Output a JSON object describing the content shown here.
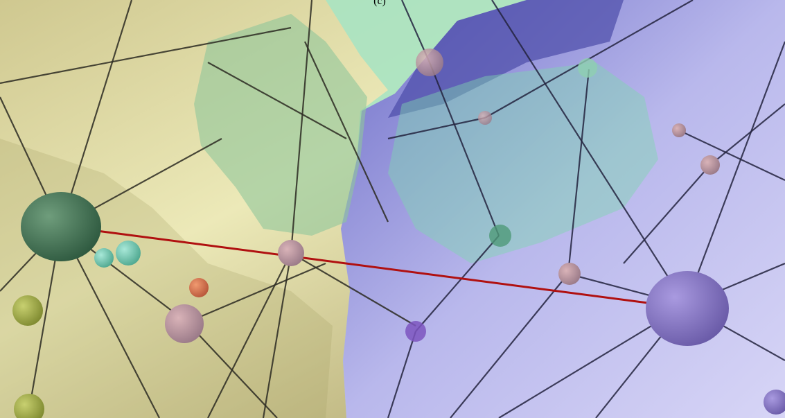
{
  "caption": "(c)"
}
